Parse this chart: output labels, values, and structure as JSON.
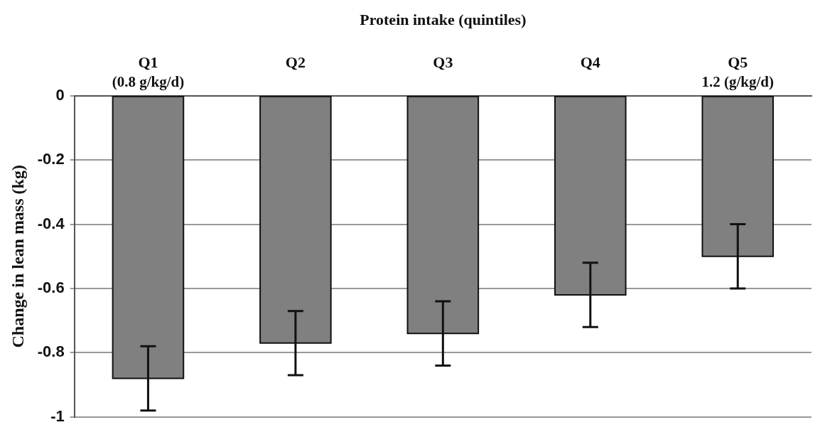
{
  "chart_data": {
    "type": "bar",
    "xlabel": "Protein intake (quintiles)",
    "ylabel": "Change in lean mass (kg)",
    "categories": [
      "Q1",
      "Q2",
      "Q3",
      "Q4",
      "Q5"
    ],
    "values": [
      -0.88,
      -0.77,
      -0.74,
      -0.62,
      -0.5
    ],
    "errors": [
      0.1,
      0.1,
      0.1,
      0.1,
      0.1
    ],
    "color": "#808080",
    "ylim": [
      -1,
      0
    ],
    "yticks": [
      0,
      -0.2,
      -0.4,
      -0.6,
      -0.8,
      -1
    ],
    "grid": "y",
    "annotations": [
      {
        "text": "(0.8 g/kg/d)",
        "x": "Q1",
        "y": 0
      },
      {
        "text": "1.2 (g/kg/d)",
        "x": "Q5",
        "y": 0
      }
    ]
  }
}
